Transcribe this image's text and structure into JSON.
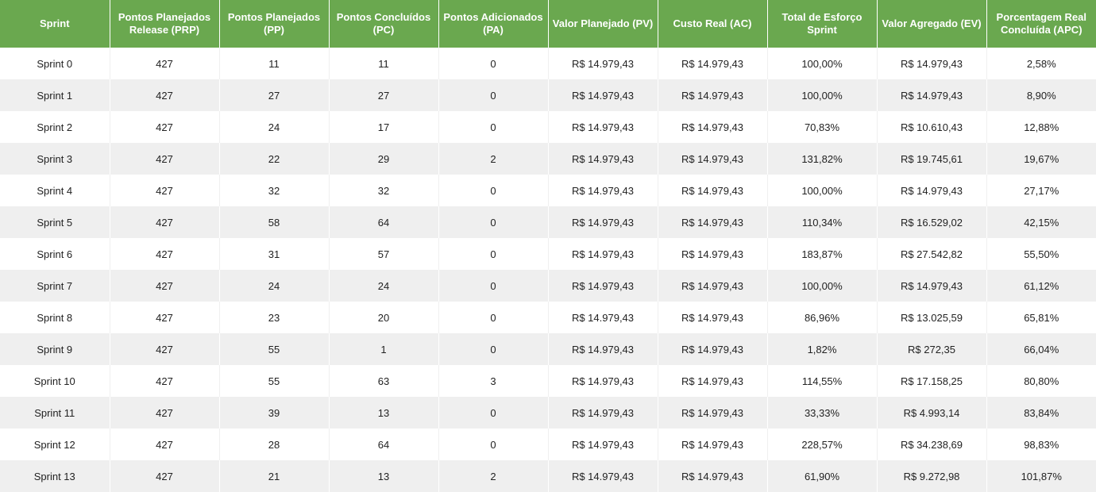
{
  "table": {
    "headers": [
      "Sprint",
      "Pontos Planejados Release (PRP)",
      "Pontos Planejados (PP)",
      "Pontos Concluídos (PC)",
      "Pontos Adicionados (PA)",
      "Valor Planejado (PV)",
      "Custo Real (AC)",
      "Total de Esforço Sprint",
      "Valor Agregado (EV)",
      "Porcentagem Real Concluída (APC)"
    ],
    "rows": [
      [
        "Sprint 0",
        "427",
        "11",
        "11",
        "0",
        "R$ 14.979,43",
        "R$ 14.979,43",
        "100,00%",
        "R$ 14.979,43",
        "2,58%"
      ],
      [
        "Sprint 1",
        "427",
        "27",
        "27",
        "0",
        "R$ 14.979,43",
        "R$ 14.979,43",
        "100,00%",
        "R$ 14.979,43",
        "8,90%"
      ],
      [
        "Sprint 2",
        "427",
        "24",
        "17",
        "0",
        "R$ 14.979,43",
        "R$ 14.979,43",
        "70,83%",
        "R$ 10.610,43",
        "12,88%"
      ],
      [
        "Sprint 3",
        "427",
        "22",
        "29",
        "2",
        "R$ 14.979,43",
        "R$ 14.979,43",
        "131,82%",
        "R$ 19.745,61",
        "19,67%"
      ],
      [
        "Sprint 4",
        "427",
        "32",
        "32",
        "0",
        "R$ 14.979,43",
        "R$ 14.979,43",
        "100,00%",
        "R$ 14.979,43",
        "27,17%"
      ],
      [
        "Sprint 5",
        "427",
        "58",
        "64",
        "0",
        "R$ 14.979,43",
        "R$ 14.979,43",
        "110,34%",
        "R$ 16.529,02",
        "42,15%"
      ],
      [
        "Sprint 6",
        "427",
        "31",
        "57",
        "0",
        "R$ 14.979,43",
        "R$ 14.979,43",
        "183,87%",
        "R$ 27.542,82",
        "55,50%"
      ],
      [
        "Sprint 7",
        "427",
        "24",
        "24",
        "0",
        "R$ 14.979,43",
        "R$ 14.979,43",
        "100,00%",
        "R$ 14.979,43",
        "61,12%"
      ],
      [
        "Sprint 8",
        "427",
        "23",
        "20",
        "0",
        "R$ 14.979,43",
        "R$ 14.979,43",
        "86,96%",
        "R$ 13.025,59",
        "65,81%"
      ],
      [
        "Sprint 9",
        "427",
        "55",
        "1",
        "0",
        "R$ 14.979,43",
        "R$ 14.979,43",
        "1,82%",
        "R$ 272,35",
        "66,04%"
      ],
      [
        "Sprint 10",
        "427",
        "55",
        "63",
        "3",
        "R$ 14.979,43",
        "R$ 14.979,43",
        "114,55%",
        "R$ 17.158,25",
        "80,80%"
      ],
      [
        "Sprint 11",
        "427",
        "39",
        "13",
        "0",
        "R$ 14.979,43",
        "R$ 14.979,43",
        "33,33%",
        "R$ 4.993,14",
        "83,84%"
      ],
      [
        "Sprint 12",
        "427",
        "28",
        "64",
        "0",
        "R$ 14.979,43",
        "R$ 14.979,43",
        "228,57%",
        "R$ 34.238,69",
        "98,83%"
      ],
      [
        "Sprint 13",
        "427",
        "21",
        "13",
        "2",
        "R$ 14.979,43",
        "R$ 14.979,43",
        "61,90%",
        "R$ 9.272,98",
        "101,87%"
      ]
    ]
  },
  "colors": {
    "header_background": "#6aa84f",
    "header_text": "#ffffff",
    "row_alternate": "#efefef"
  }
}
